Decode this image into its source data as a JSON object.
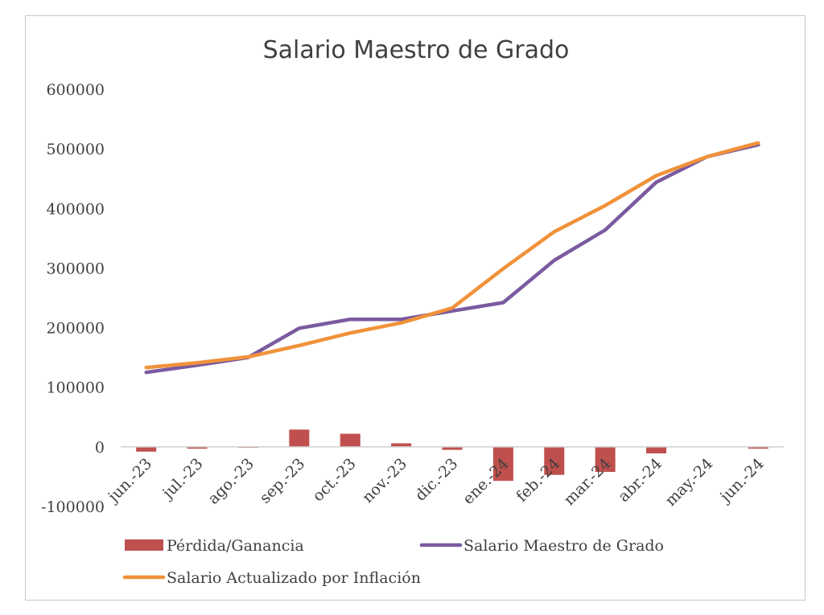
{
  "chart_data": {
    "type": "bar+line",
    "title": "Salario Maestro de Grado",
    "xlabel": "",
    "ylabel": "",
    "categories": [
      "jun.-23",
      "jul.-23",
      "ago.-23",
      "sep.-23",
      "oct.-23",
      "nov.-23",
      "dic.-23",
      "ene.-24",
      "feb.-24",
      "mar.-24",
      "abr.-24",
      "may.-24",
      "jun.-24"
    ],
    "ylim": [
      -100000,
      600000
    ],
    "yticks": [
      "-100000",
      "0",
      "100000",
      "200000",
      "300000",
      "400000",
      "500000",
      "600000"
    ],
    "ytick_values": [
      -100000,
      0,
      100000,
      200000,
      300000,
      400000,
      500000,
      600000
    ],
    "grid": false,
    "legend_position": "bottom",
    "series": [
      {
        "name": "Pérdida/Ganancia",
        "kind": "bar",
        "color": "#c0504d",
        "values": [
          -8000,
          -3000,
          -1500,
          29000,
          22000,
          6000,
          -5000,
          -57000,
          -47000,
          -42000,
          -11000,
          0,
          -3000
        ]
      },
      {
        "name": "Salario Maestro de Grado",
        "kind": "line",
        "color": "#7a5aa0",
        "values": [
          125000,
          137000,
          150000,
          199000,
          214000,
          214000,
          228000,
          242000,
          313000,
          364000,
          444000,
          487000,
          507000
        ]
      },
      {
        "name": "Salario Actualizado por Inflación",
        "kind": "line",
        "color": "#f0923a",
        "values": [
          133000,
          141000,
          151000,
          170000,
          191000,
          208000,
          233000,
          299000,
          361000,
          405000,
          455000,
          487000,
          510000
        ]
      }
    ]
  }
}
